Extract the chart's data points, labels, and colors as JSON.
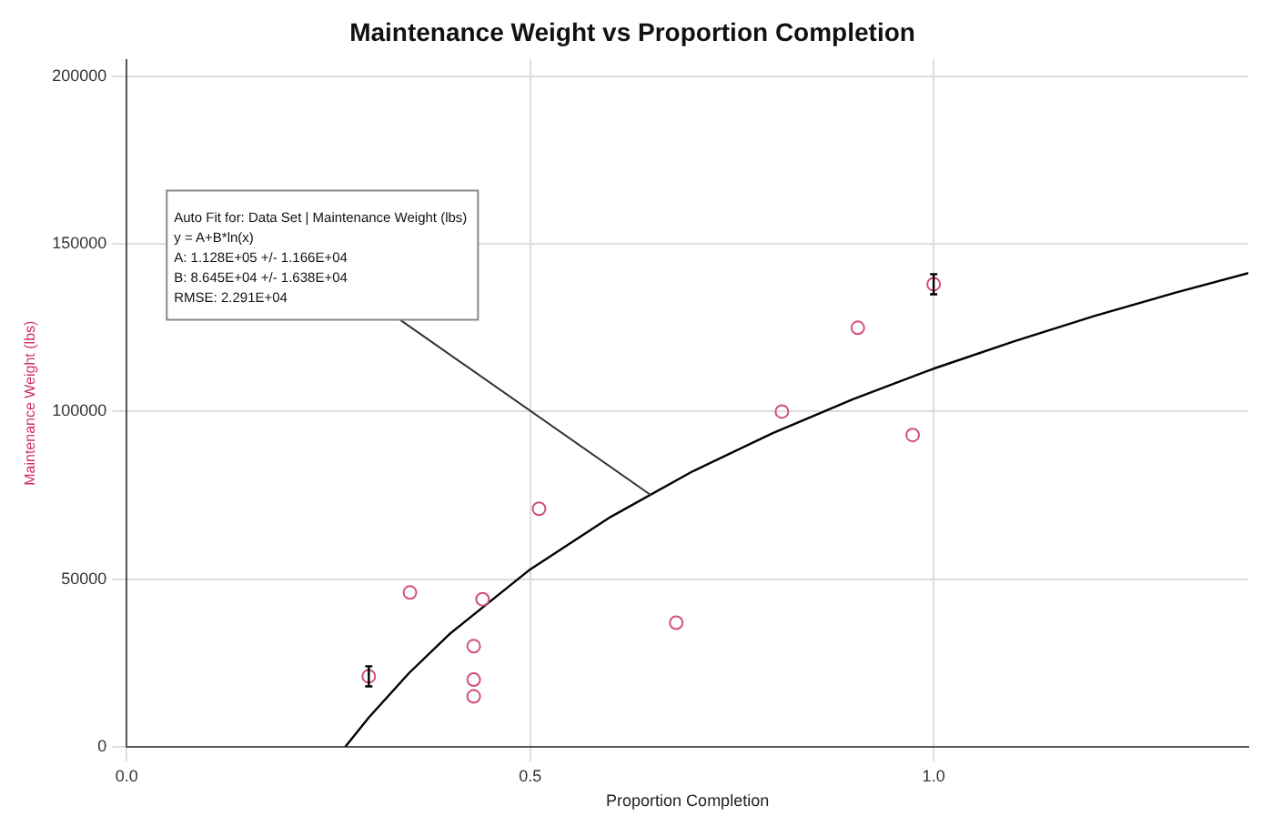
{
  "chart_data": {
    "type": "scatter",
    "title": "Maintenance Weight vs Proportion Completion",
    "xlabel": "Proportion Completion",
    "ylabel": "Maintenance Weight (lbs)",
    "xlim": [
      0,
      1.39
    ],
    "xticks": [
      {
        "value": 0,
        "label": "0.0"
      },
      {
        "value": 0.5,
        "label": "0.5"
      },
      {
        "value": 1,
        "label": "1.0"
      }
    ],
    "ylim": [
      0,
      205000
    ],
    "yticks": [
      0,
      50000,
      100000,
      150000,
      200000
    ],
    "grid": true,
    "legend": false,
    "marker": "circle",
    "series": [
      {
        "color": "#d0507a",
        "x": [
          0.3,
          0.351,
          0.441,
          0.43,
          0.43,
          0.43,
          0.511,
          1.0,
          0.906,
          0.812,
          0.974,
          0.681
        ],
        "values": [
          21000,
          46000,
          44000,
          30000,
          20000,
          15000,
          71000,
          138000,
          125000,
          100000,
          93000,
          37000
        ],
        "errors": [
          3000,
          null,
          null,
          null,
          null,
          null,
          null,
          3000,
          null,
          null,
          null,
          null
        ]
      },
      {
        "type": "line",
        "color": "#000000",
        "marker": "none",
        "x": [
          0.271,
          0.3,
          0.35,
          0.4,
          0.5,
          0.6,
          0.7,
          0.8,
          0.9,
          1.0,
          1.1,
          1.2,
          1.3,
          1.39
        ],
        "values": [
          0,
          8700,
          22000,
          33600,
          52900,
          68600,
          82000,
          93500,
          103700,
          112800,
          121000,
          128600,
          135500,
          141300
        ]
      }
    ],
    "annotations": [
      {
        "text": "Auto Fit for: Data Set | Maintenance Weight (lbs)\ny = A+B*ln(x)\nA: 1.128E+05 +/- 1.166E+04\nB: 8.645E+04 +/- 1.638E+04\nRMSE: 2.291E+04",
        "x": 0.65,
        "y": 75000
      }
    ]
  }
}
